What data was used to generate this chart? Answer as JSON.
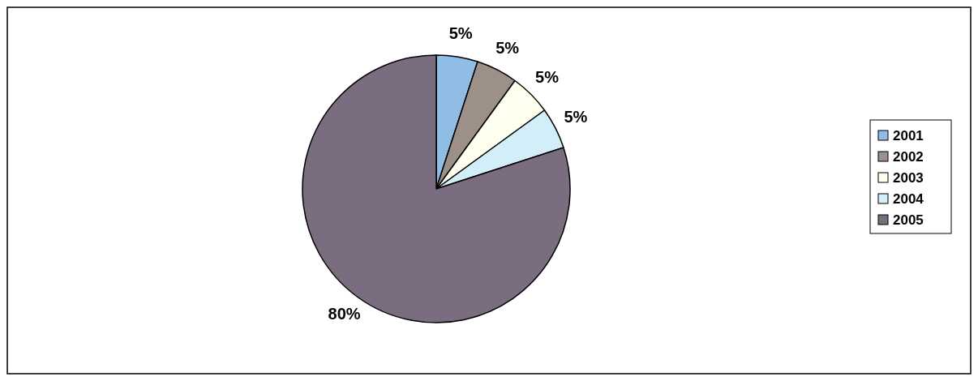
{
  "chart_data": {
    "type": "pie",
    "categories": [
      "2001",
      "2002",
      "2003",
      "2004",
      "2005"
    ],
    "values": [
      5,
      5,
      5,
      5,
      80
    ],
    "value_labels": [
      "5%",
      "5%",
      "5%",
      "5%",
      "80%"
    ],
    "colors": [
      "#8fbde6",
      "#9c9088",
      "#fffff0",
      "#d2eef8",
      "#7b6d80"
    ],
    "legend": "right"
  }
}
